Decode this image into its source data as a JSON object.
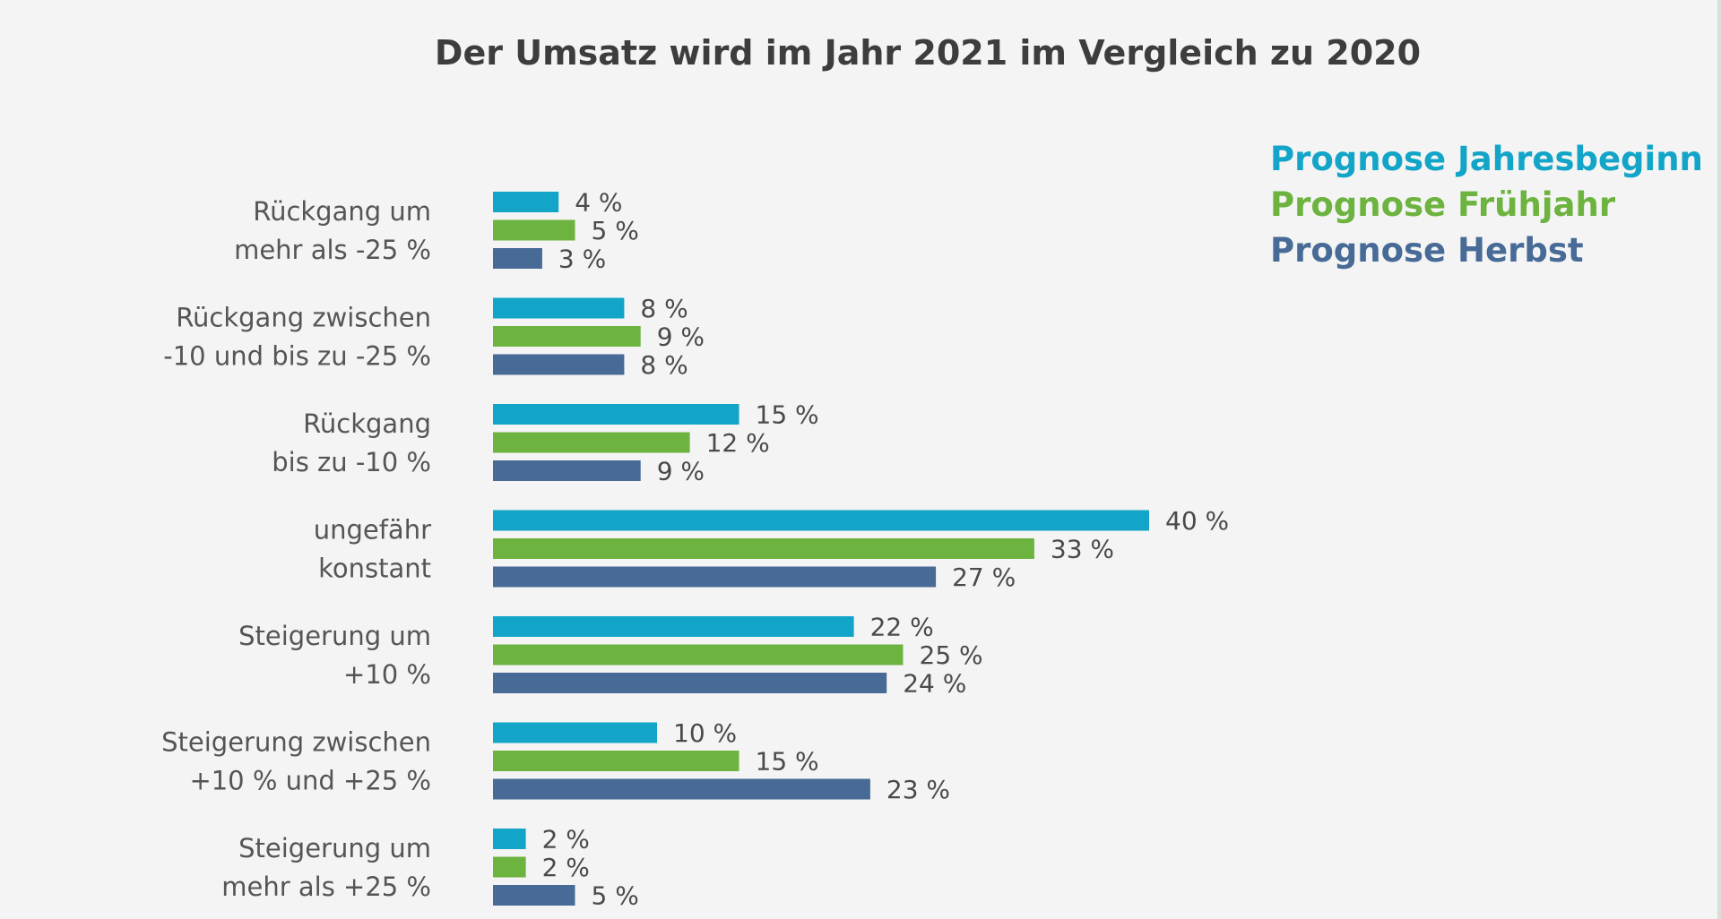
{
  "chart_data": {
    "type": "bar",
    "orientation": "horizontal",
    "title": "Der Umsatz wird im Jahr 2021 im Vergleich zu 2020",
    "xlabel": "",
    "ylabel": "",
    "xlim": [
      0,
      40
    ],
    "grid": false,
    "legend_position": "top-right",
    "value_suffix": " %",
    "categories": [
      [
        "Rückgang um",
        "mehr als -25 %"
      ],
      [
        "Rückgang zwischen",
        "-10 und bis zu -25 %"
      ],
      [
        "Rückgang",
        "bis zu -10 %"
      ],
      [
        "ungefähr",
        "konstant"
      ],
      [
        "Steigerung um",
        "+10 %"
      ],
      [
        "Steigerung zwischen",
        "+10 % und +25 %"
      ],
      [
        "Steigerung um",
        "mehr als +25 %"
      ]
    ],
    "series": [
      {
        "name": "Prognose Jahresbeginn",
        "color": "#12a5c8",
        "values": [
          4,
          8,
          15,
          40,
          22,
          10,
          2
        ]
      },
      {
        "name": "Prognose Frühjahr",
        "color": "#6db33f",
        "values": [
          5,
          9,
          12,
          33,
          25,
          15,
          2
        ]
      },
      {
        "name": "Prognose Herbst",
        "color": "#476a96",
        "values": [
          3,
          8,
          9,
          27,
          24,
          23,
          5
        ]
      }
    ]
  }
}
